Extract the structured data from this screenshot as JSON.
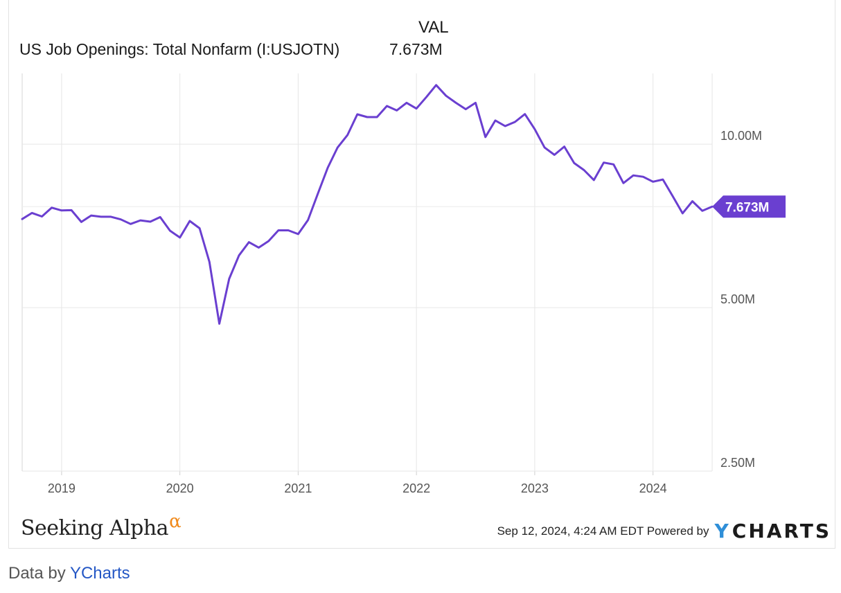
{
  "header": {
    "val_column": "VAL",
    "series_name": "US Job Openings: Total Nonfarm (I:USJOTN)",
    "series_value": "7.673M"
  },
  "chart_data": {
    "type": "line",
    "series": [
      {
        "name": "US Job Openings: Total Nonfarm (I:USJOTN)",
        "color": "#6a3fd0",
        "points": [
          [
            "2018-09",
            7.28
          ],
          [
            "2018-10",
            7.47
          ],
          [
            "2018-11",
            7.36
          ],
          [
            "2018-12",
            7.64
          ],
          [
            "2019-01",
            7.55
          ],
          [
            "2019-02",
            7.56
          ],
          [
            "2019-03",
            7.19
          ],
          [
            "2019-04",
            7.39
          ],
          [
            "2019-05",
            7.35
          ],
          [
            "2019-06",
            7.35
          ],
          [
            "2019-07",
            7.27
          ],
          [
            "2019-08",
            7.13
          ],
          [
            "2019-09",
            7.24
          ],
          [
            "2019-10",
            7.2
          ],
          [
            "2019-11",
            7.34
          ],
          [
            "2019-12",
            6.93
          ],
          [
            "2020-01",
            6.73
          ],
          [
            "2020-02",
            7.22
          ],
          [
            "2020-03",
            7.0
          ],
          [
            "2020-04",
            6.07
          ],
          [
            "2020-05",
            4.67
          ],
          [
            "2020-06",
            5.65
          ],
          [
            "2020-07",
            6.24
          ],
          [
            "2020-08",
            6.6
          ],
          [
            "2020-09",
            6.45
          ],
          [
            "2020-10",
            6.63
          ],
          [
            "2020-11",
            6.94
          ],
          [
            "2020-12",
            6.94
          ],
          [
            "2021-01",
            6.83
          ],
          [
            "2021-02",
            7.25
          ],
          [
            "2021-03",
            8.11
          ],
          [
            "2021-04",
            9.05
          ],
          [
            "2021-05",
            9.86
          ],
          [
            "2021-06",
            10.39
          ],
          [
            "2021-07",
            11.35
          ],
          [
            "2021-08",
            11.22
          ],
          [
            "2021-09",
            11.22
          ],
          [
            "2021-10",
            11.76
          ],
          [
            "2021-11",
            11.54
          ],
          [
            "2021-12",
            11.92
          ],
          [
            "2022-01",
            11.63
          ],
          [
            "2022-02",
            12.21
          ],
          [
            "2022-03",
            12.85
          ],
          [
            "2022-04",
            12.28
          ],
          [
            "2022-05",
            11.92
          ],
          [
            "2022-06",
            11.6
          ],
          [
            "2022-07",
            11.92
          ],
          [
            "2022-08",
            10.31
          ],
          [
            "2022-09",
            11.06
          ],
          [
            "2022-10",
            10.8
          ],
          [
            "2022-11",
            10.99
          ],
          [
            "2022-12",
            11.36
          ],
          [
            "2023-01",
            10.66
          ],
          [
            "2023-02",
            9.86
          ],
          [
            "2023-03",
            9.56
          ],
          [
            "2023-04",
            9.9
          ],
          [
            "2023-05",
            9.23
          ],
          [
            "2023-06",
            8.96
          ],
          [
            "2023-07",
            8.59
          ],
          [
            "2023-08",
            9.25
          ],
          [
            "2023-09",
            9.18
          ],
          [
            "2023-10",
            8.48
          ],
          [
            "2023-11",
            8.76
          ],
          [
            "2023-12",
            8.71
          ],
          [
            "2024-01",
            8.53
          ],
          [
            "2024-02",
            8.61
          ],
          [
            "2024-03",
            8.02
          ],
          [
            "2024-04",
            7.46
          ],
          [
            "2024-05",
            7.85
          ],
          [
            "2024-06",
            7.54
          ],
          [
            "2024-07",
            7.673
          ]
        ]
      }
    ],
    "x_ticks": [
      "2019",
      "2020",
      "2021",
      "2022",
      "2023",
      "2024"
    ],
    "y_ticks": [
      "10.00M",
      "5.00M",
      "2.50M"
    ],
    "y_scale": "log",
    "ylim": [
      2.5,
      13.5
    ],
    "grid": true,
    "end_label": "7.673M",
    "end_label_color": "#6a3fd0"
  },
  "footer": {
    "brand": "Seeking Alpha",
    "brand_mark": "α",
    "timestamp": "Sep 12, 2024, 4:24 AM EDT Powered by",
    "provider_logo_y": "Y",
    "provider_logo_rest": "CHARTS"
  },
  "attribution": {
    "prefix": "Data by",
    "link": "YCharts"
  }
}
